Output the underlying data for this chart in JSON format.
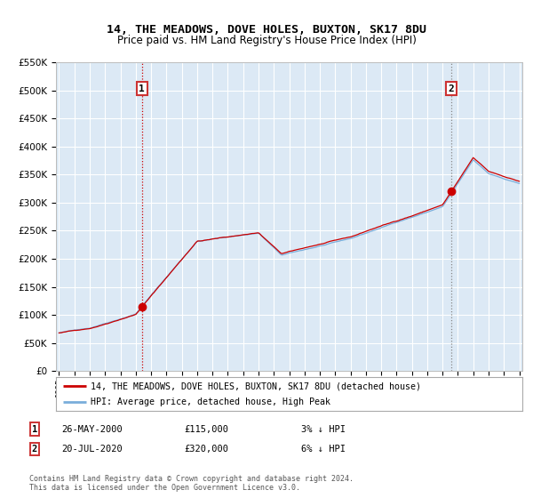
{
  "title": "14, THE MEADOWS, DOVE HOLES, BUXTON, SK17 8DU",
  "subtitle": "Price paid vs. HM Land Registry's House Price Index (HPI)",
  "legend_line1": "14, THE MEADOWS, DOVE HOLES, BUXTON, SK17 8DU (detached house)",
  "legend_line2": "HPI: Average price, detached house, High Peak",
  "annotation1_date": "26-MAY-2000",
  "annotation1_price": "£115,000",
  "annotation1_hpi": "3% ↓ HPI",
  "annotation1_year": 2000.4,
  "annotation1_value": 115000,
  "annotation2_date": "20-JUL-2020",
  "annotation2_price": "£320,000",
  "annotation2_hpi": "6% ↓ HPI",
  "annotation2_year": 2020.55,
  "annotation2_value": 320000,
  "start_year": 1995,
  "end_year": 2025,
  "ylim_min": 0,
  "ylim_max": 550000,
  "fig_bg_color": "#ffffff",
  "plot_bg_color": "#dce9f5",
  "hpi_color": "#7aaedb",
  "price_color": "#cc0000",
  "grid_color": "#ffffff",
  "vline1_color": "#cc0000",
  "vline2_color": "#888888",
  "footnote": "Contains HM Land Registry data © Crown copyright and database right 2024.\nThis data is licensed under the Open Government Licence v3.0."
}
